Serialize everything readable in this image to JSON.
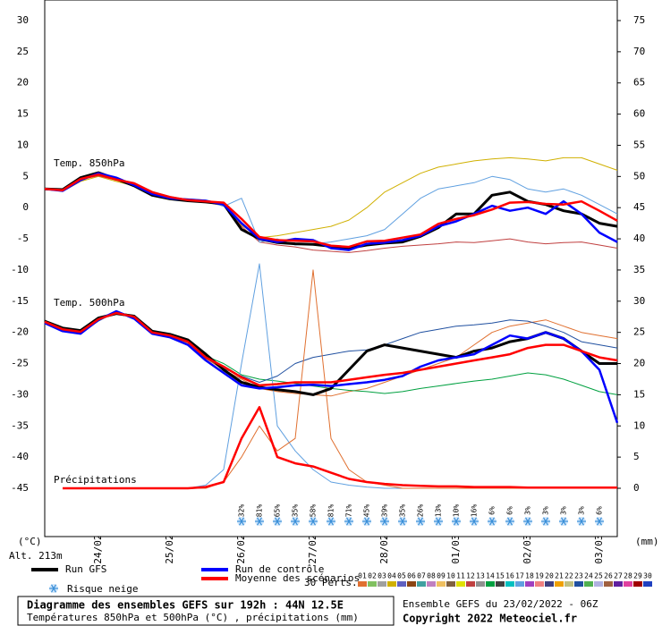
{
  "chart_data": {
    "type": "line",
    "title": "Diagramme des ensembles GEFS sur 192h : 44N 12.5E",
    "subtitle": "Températures 850hPa et 500hPa (°C) , précipitations (mm)",
    "run_info": "Ensemble GEFS du 23/02/2022 - 06Z",
    "copyright": "Copyright 2022 Meteociel.fr",
    "y_label": "(°C)",
    "y2_label": "(mm)",
    "altitude": "Alt. 213m",
    "annotations": [
      "Temp. 850hPa",
      "Temp. 500hPa",
      "Précipitations"
    ],
    "members_label": "30 Perts.",
    "members": [
      {
        "label": "01",
        "color": "#e07030"
      },
      {
        "label": "02",
        "color": "#80c060"
      },
      {
        "label": "03",
        "color": "#a0a0a0"
      },
      {
        "label": "04",
        "color": "#d0b000"
      },
      {
        "label": "05",
        "color": "#6060c0"
      },
      {
        "label": "06",
        "color": "#8b4513"
      },
      {
        "label": "07",
        "color": "#40a0a0"
      },
      {
        "label": "08",
        "color": "#c080c0"
      },
      {
        "label": "09",
        "color": "#f0c060"
      },
      {
        "label": "10",
        "color": "#806040"
      },
      {
        "label": "11",
        "color": "#e0e000"
      },
      {
        "label": "12",
        "color": "#c04040"
      },
      {
        "label": "13",
        "color": "#909090"
      },
      {
        "label": "14",
        "color": "#00a040"
      },
      {
        "label": "15",
        "color": "#404040"
      },
      {
        "label": "16",
        "color": "#00c0c0"
      },
      {
        "label": "17",
        "color": "#60a0e0"
      },
      {
        "label": "18",
        "color": "#a040c0"
      },
      {
        "label": "19",
        "color": "#f08080"
      },
      {
        "label": "20",
        "color": "#404080"
      },
      {
        "label": "21",
        "color": "#f0a000"
      },
      {
        "label": "22",
        "color": "#c0c080"
      },
      {
        "label": "23",
        "color": "#2050a0"
      },
      {
        "label": "24",
        "color": "#50b050"
      },
      {
        "label": "25",
        "color": "#b0b0e0"
      },
      {
        "label": "26",
        "color": "#a06040"
      },
      {
        "label": "27",
        "color": "#6020a0"
      },
      {
        "label": "28",
        "color": "#e040a0"
      },
      {
        "label": "29",
        "color": "#a00000"
      },
      {
        "label": "30",
        "color": "#2040c0"
      }
    ],
    "x": [
      0,
      6,
      12,
      18,
      24,
      30,
      36,
      42,
      48,
      54,
      60,
      66,
      72,
      78,
      84,
      90,
      96,
      102,
      108,
      114,
      120,
      126,
      132,
      138,
      144,
      150,
      156,
      162,
      168,
      174,
      180,
      186,
      192
    ],
    "xlim": [
      0,
      192
    ],
    "xticks": [
      {
        "value": 18,
        "label": "24/02"
      },
      {
        "value": 42,
        "label": "25/02"
      },
      {
        "value": 66,
        "label": "26/02"
      },
      {
        "value": 90,
        "label": "27/02"
      },
      {
        "value": 114,
        "label": "28/02"
      },
      {
        "value": 138,
        "label": "01/03"
      },
      {
        "value": 162,
        "label": "02/03"
      },
      {
        "value": 186,
        "label": "03/03"
      }
    ],
    "ylim": [
      -45,
      30
    ],
    "yticks": [
      -45,
      -40,
      -35,
      -30,
      -25,
      -20,
      -15,
      -10,
      -5,
      0,
      5,
      10,
      15,
      20,
      25,
      30
    ],
    "y2lim": [
      0,
      75
    ],
    "y2ticks": [
      0,
      5,
      10,
      15,
      20,
      25,
      30,
      35,
      40,
      45,
      50,
      55,
      60,
      65,
      70,
      75
    ],
    "grid": true,
    "series": [
      {
        "name": "04",
        "color": "#d0b000",
        "values": [
          3,
          2.6,
          4.2,
          5,
          4.2,
          3.5,
          2.3,
          1.5,
          1.4,
          1.2,
          0.5,
          -2.8,
          -4.8,
          -4.5,
          -4,
          -3.5,
          -3,
          -2,
          0,
          2.5,
          4,
          5.5,
          6.5,
          7,
          7.5,
          7.8,
          8,
          7.8,
          7.5,
          8,
          8,
          7,
          6
        ]
      },
      {
        "name": "12",
        "color": "#c04040",
        "values": [
          3,
          2.9,
          4.5,
          5.1,
          4.4,
          3.7,
          2.4,
          1.6,
          1.2,
          0.9,
          0.3,
          -3,
          -5.5,
          -6,
          -6.3,
          -6.8,
          -7,
          -7.2,
          -6.9,
          -6.5,
          -6.2,
          -6,
          -5.8,
          -5.5,
          -5.6,
          -5.3,
          -5,
          -5.5,
          -5.8,
          -5.6,
          -5.5,
          -6,
          -6.5
        ]
      },
      {
        "name": "17",
        "color": "#60a0e0",
        "values": [
          3,
          2.8,
          4.7,
          5.4,
          4.6,
          4,
          2.6,
          1.8,
          1.3,
          1.1,
          0.2,
          1.5,
          -5.5,
          -5,
          -6,
          -5.8,
          -5.5,
          -5,
          -4.5,
          -3.5,
          -1,
          1.5,
          3,
          3.5,
          4,
          5,
          4.5,
          3,
          2.5,
          3,
          2,
          0.5,
          -1
        ]
      },
      {
        "name": "01",
        "color": "#e07030",
        "values": [
          -18.4,
          -19.6,
          -20,
          -17.8,
          -17,
          -17.6,
          -20.1,
          -20.6,
          -21.8,
          -24.2,
          -26,
          -27.5,
          -29,
          -29.5,
          -29.8,
          -30,
          -30.2,
          -29.5,
          -29,
          -28,
          -27,
          -26,
          -25,
          -24,
          -22,
          -20,
          -19,
          -18.5,
          -18,
          -19,
          -20,
          -20.5,
          -21
        ]
      },
      {
        "name": "14",
        "color": "#00a040",
        "values": [
          -18.3,
          -19.4,
          -19.8,
          -18.1,
          -16.8,
          -17.3,
          -19.9,
          -20.4,
          -21.4,
          -23.8,
          -25,
          -26.8,
          -27.5,
          -27.8,
          -28.2,
          -28.6,
          -29,
          -29.3,
          -29.5,
          -29.8,
          -29.5,
          -29,
          -28.6,
          -28.2,
          -27.8,
          -27.5,
          -27,
          -26.5,
          -26.8,
          -27.5,
          -28.5,
          -29.5,
          -30
        ]
      },
      {
        "name": "23",
        "color": "#2050a0",
        "values": [
          -18.3,
          -19.5,
          -20.1,
          -18.2,
          -16.7,
          -17.7,
          -20.2,
          -20.7,
          -21.6,
          -24.1,
          -25.8,
          -27,
          -28,
          -27,
          -25,
          -24,
          -23.5,
          -23,
          -22.8,
          -22,
          -21,
          -20,
          -19.5,
          -19,
          -18.8,
          -18.5,
          -18,
          -18.2,
          -19,
          -20,
          -21.5,
          -22,
          -22.5
        ]
      },
      {
        "name": "17",
        "color": "#60a0e0",
        "axis": "y2",
        "values": [
          null,
          0,
          0,
          0,
          0,
          0,
          0,
          0,
          0,
          0.5,
          3,
          20,
          36,
          10,
          6,
          3,
          1,
          0.5,
          0.2,
          0,
          0,
          0,
          0,
          0,
          0,
          0,
          0,
          0,
          0,
          0,
          0,
          0,
          0
        ]
      },
      {
        "name": "01",
        "color": "#e07030",
        "axis": "y2",
        "values": [
          null,
          0,
          0,
          0,
          0,
          0,
          0,
          0,
          0,
          0,
          1,
          5,
          10,
          6,
          8,
          35,
          8,
          3,
          1,
          0.5,
          0,
          0,
          0,
          0,
          0,
          0,
          0,
          0,
          0,
          0,
          0,
          0,
          0
        ]
      },
      {
        "name": "Run GFS",
        "color": "#000000",
        "values": [
          3,
          2.9,
          4.8,
          5.6,
          4.6,
          3.5,
          2,
          1.4,
          1.1,
          0.9,
          0.6,
          -3.5,
          -5,
          -5.6,
          -5.8,
          -5.9,
          -6.2,
          -6.5,
          -6,
          -5.7,
          -5.5,
          -4.6,
          -3.2,
          -1,
          -1,
          2,
          2.5,
          1,
          0.5,
          -0.5,
          -1,
          -2.5,
          -3
        ]
      },
      {
        "name": "Run GFS",
        "color": "#000000",
        "values": [
          -18.2,
          -19.3,
          -19.7,
          -17.7,
          -17,
          -17.4,
          -19.8,
          -20.3,
          -21.2,
          -23.5,
          -26,
          -28,
          -28.8,
          -29.2,
          -29.5,
          -30,
          -29,
          -26,
          -23,
          -22,
          -22.5,
          -23,
          -23.5,
          -24,
          -23,
          -22.5,
          -21.5,
          -21,
          -20,
          -21,
          -23,
          -25,
          -25
        ]
      },
      {
        "name": "Run de contrôle",
        "color": "#0000ff",
        "values": [
          3,
          2.7,
          4.4,
          5.5,
          4.8,
          3.6,
          2.2,
          1.5,
          1.3,
          1.1,
          0.5,
          -2.5,
          -5,
          -5.5,
          -5,
          -5.2,
          -6.5,
          -6.8,
          -5.8,
          -5.6,
          -5.2,
          -4.5,
          -3,
          -2.2,
          -1,
          0.3,
          -0.5,
          0,
          -1,
          1,
          -1,
          -4,
          -5.5
        ]
      },
      {
        "name": "Run de contrôle",
        "color": "#0000ff",
        "values": [
          -18.5,
          -19.8,
          -20.2,
          -18,
          -16.6,
          -17.8,
          -20.2,
          -20.8,
          -22,
          -24.5,
          -26.5,
          -28.5,
          -29,
          -28.8,
          -28.5,
          -28.4,
          -28.6,
          -28.3,
          -28,
          -27.6,
          -27,
          -25.5,
          -24.5,
          -24,
          -23.5,
          -22,
          -20.5,
          -21,
          -20,
          -21,
          -23,
          -26,
          -34.5
        ]
      },
      {
        "name": "Moyenne des scénarios",
        "color": "#ff0000",
        "values": [
          3,
          2.8,
          4.6,
          5.3,
          4.5,
          3.9,
          2.5,
          1.7,
          1.2,
          1,
          0.8,
          -1.8,
          -4.7,
          -5.2,
          -5.3,
          -5.4,
          -6.1,
          -6.3,
          -5.4,
          -5.3,
          -4.8,
          -4.3,
          -2.6,
          -1.8,
          -1.2,
          -0.3,
          0.8,
          0.9,
          0.6,
          0.5,
          1,
          -0.5,
          -2.1
        ]
      },
      {
        "name": "Moyenne des scénarios",
        "color": "#ff0000",
        "values": [
          -18.3,
          -19.5,
          -19.9,
          -17.9,
          -16.9,
          -17.5,
          -20,
          -20.5,
          -21.5,
          -24,
          -25.5,
          -27.2,
          -28.5,
          -28.3,
          -28,
          -28,
          -28,
          -27.6,
          -27.2,
          -26.8,
          -26.5,
          -26,
          -25.5,
          -25,
          -24.5,
          -24,
          -23.5,
          -22.5,
          -22,
          -22,
          -23,
          -24,
          -24.5
        ]
      },
      {
        "name": "Moyenne des scénarios",
        "color": "#ff0000",
        "axis": "y2",
        "values": [
          null,
          0,
          0,
          0,
          0,
          0,
          0,
          0,
          0,
          0.2,
          1,
          8,
          13,
          5,
          4,
          3.5,
          2.5,
          1.5,
          1,
          0.7,
          0.5,
          0.4,
          0.3,
          0.3,
          0.2,
          0.2,
          0.2,
          0.1,
          0.1,
          0.1,
          0.1,
          0.1,
          0.1
        ]
      }
    ],
    "snow_risk": {
      "label": "Risque neige",
      "x": [
        66,
        72,
        78,
        84,
        90,
        96,
        102,
        108,
        114,
        120,
        126,
        132,
        138,
        144,
        150,
        156,
        162,
        168,
        174,
        180,
        186
      ],
      "values": [
        32,
        81,
        65,
        35,
        58,
        81,
        71,
        45,
        39,
        35,
        26,
        13,
        10,
        16,
        6,
        6,
        3,
        3,
        3,
        3,
        6
      ],
      "value_labels": [
        "32%",
        "81%",
        "65%",
        "35%",
        "58%",
        "81%",
        "71%",
        "45%",
        "39%",
        "35%",
        "26%",
        "13%",
        "10%",
        "16%",
        "6%",
        "6%",
        "3%",
        "3%",
        "3%",
        "3%",
        "6%"
      ]
    }
  }
}
